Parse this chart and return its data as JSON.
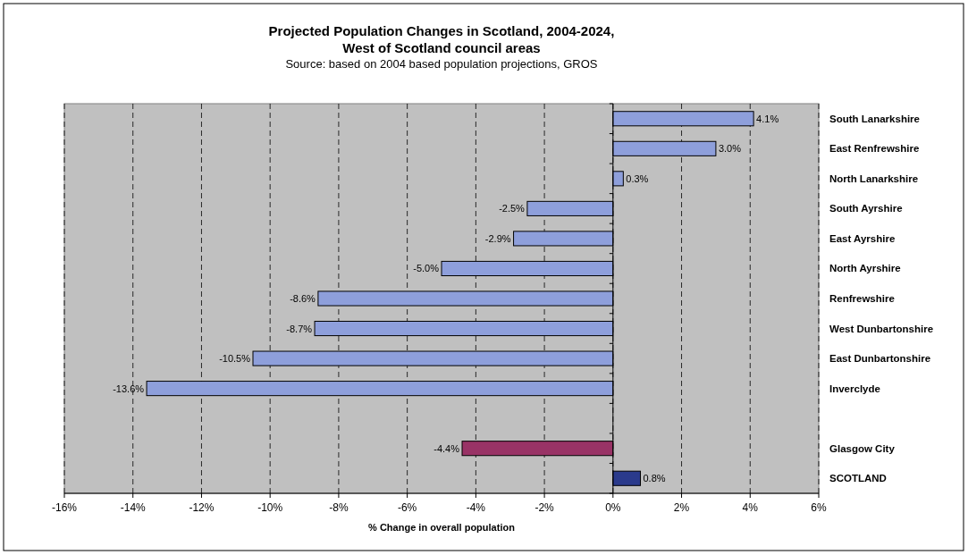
{
  "chart_data": {
    "type": "bar",
    "orientation": "horizontal",
    "title": "Projected Population Changes in Scotland, 2004-2024,\nWest of Scotland council areas",
    "subtitle": "Source: based on 2004 based population projections, GROS",
    "xlabel": "% Change in overall population",
    "categories": [
      "South Lanarkshire",
      "East Renfrewshire",
      "North Lanarkshire",
      "South Ayrshire",
      "East Ayrshire",
      "North Ayrshire",
      "Renfrewshire",
      "West Dunbartonshire",
      "East Dunbartonshire",
      "Inverclyde",
      null,
      "Glasgow City",
      "SCOTLAND"
    ],
    "values": [
      4.1,
      3.0,
      0.3,
      -2.5,
      -2.9,
      -5.0,
      -8.6,
      -8.7,
      -10.5,
      -13.6,
      null,
      -4.4,
      0.8
    ],
    "value_labels": [
      "4.1%",
      "3.0%",
      "0.3%",
      "-2.5%",
      "-2.9%",
      "-5.0%",
      "-8.6%",
      "-8.7%",
      "-10.5%",
      "-13.6%",
      null,
      "-4.4%",
      "0.8%"
    ],
    "colors": [
      "#8e9fdb",
      "#8e9fdb",
      "#8e9fdb",
      "#8e9fdb",
      "#8e9fdb",
      "#8e9fdb",
      "#8e9fdb",
      "#8e9fdb",
      "#8e9fdb",
      "#8e9fdb",
      null,
      "#993366",
      "#2a3a8c"
    ],
    "xlim": [
      -16,
      6
    ],
    "xticks": [
      {
        "value": -16,
        "label": "-16%"
      },
      {
        "value": -14,
        "label": "-14%"
      },
      {
        "value": -12,
        "label": "-12%"
      },
      {
        "value": -10,
        "label": "-10%"
      },
      {
        "value": -8,
        "label": "-8%"
      },
      {
        "value": -6,
        "label": "-6%"
      },
      {
        "value": -4,
        "label": "-4%"
      },
      {
        "value": -2,
        "label": "-2%"
      },
      {
        "value": 0,
        "label": "0%"
      },
      {
        "value": 2,
        "label": "2%"
      },
      {
        "value": 4,
        "label": "4%"
      },
      {
        "value": 6,
        "label": "6%"
      }
    ],
    "grid": "x"
  }
}
